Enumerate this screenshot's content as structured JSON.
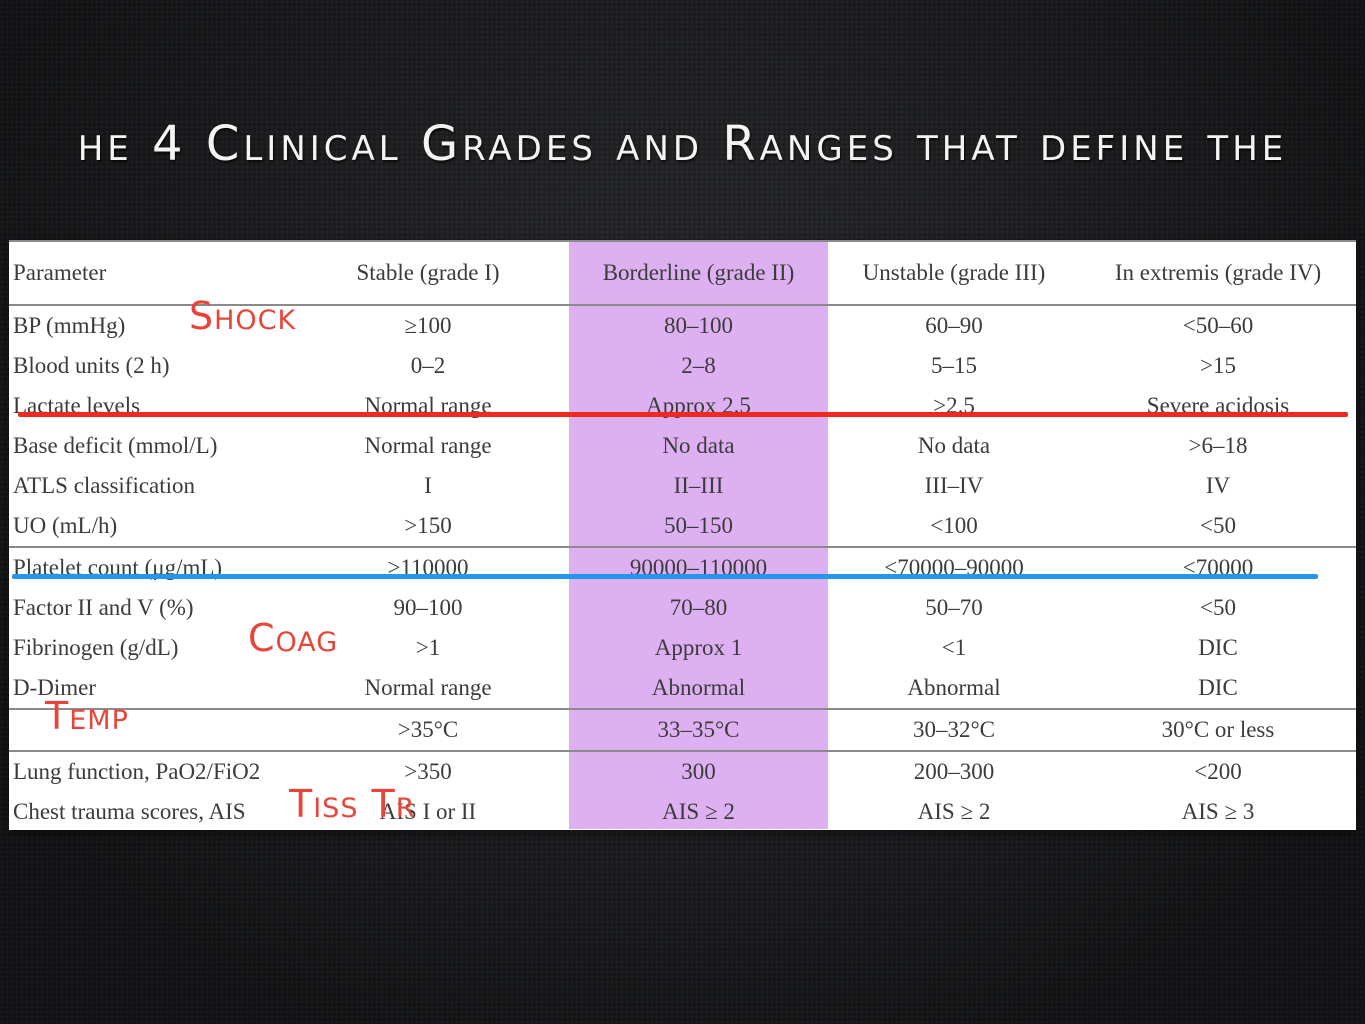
{
  "slide": {
    "title": "he 4 Clinical Grades and Ranges that define the"
  },
  "table": {
    "headers": [
      "Parameter",
      "Stable (grade I)",
      "Borderline (grade II)",
      "Unstable (grade III)",
      "In extremis (grade IV)"
    ],
    "rows": [
      [
        "BP (mmHg)",
        "≥100",
        "80–100",
        "60–90",
        "<50–60"
      ],
      [
        "Blood units (2 h)",
        "0–2",
        "2–8",
        "5–15",
        ">15"
      ],
      [
        "Lactate levels",
        "Normal range",
        "Approx 2.5",
        ">2.5",
        "Severe acidosis"
      ],
      [
        "Base deficit (mmol/L)",
        "Normal range",
        "No data",
        "No data",
        ">6–18"
      ],
      [
        "ATLS classification",
        "I",
        "II–III",
        "III–IV",
        "IV"
      ],
      [
        "UO (mL/h)",
        ">150",
        "50–150",
        "<100",
        "<50"
      ],
      [
        "Platelet count (μg/mL)",
        ">110000",
        "90000–110000",
        "<70000–90000",
        "<70000"
      ],
      [
        "Factor II and V (%)",
        "90–100",
        "70–80",
        "50–70",
        "<50"
      ],
      [
        "Fibrinogen (g/dL)",
        ">1",
        "Approx 1",
        "<1",
        "DIC"
      ],
      [
        "D-Dimer",
        "Normal range",
        "Abnormal",
        "Abnormal",
        "DIC"
      ],
      [
        "",
        ">35°C",
        "33–35°C",
        "30–32°C",
        "30°C or less"
      ],
      [
        "Lung function, PaO2/FiO2",
        ">350",
        "300",
        "200–300",
        "<200"
      ],
      [
        "Chest trauma scores, AIS",
        "AIS I or II",
        "AIS ≥ 2",
        "AIS ≥ 2",
        "AIS ≥ 3"
      ]
    ]
  },
  "annotations": {
    "shock": "Shock",
    "coag": "Coag",
    "temp": "Temp",
    "tiss": "Tiss Tr"
  },
  "colors": {
    "highlight": "#ddb1f1",
    "red_line": "#ee2a20",
    "blue_line": "#2596ee",
    "annotation_text": "#e8453a"
  }
}
